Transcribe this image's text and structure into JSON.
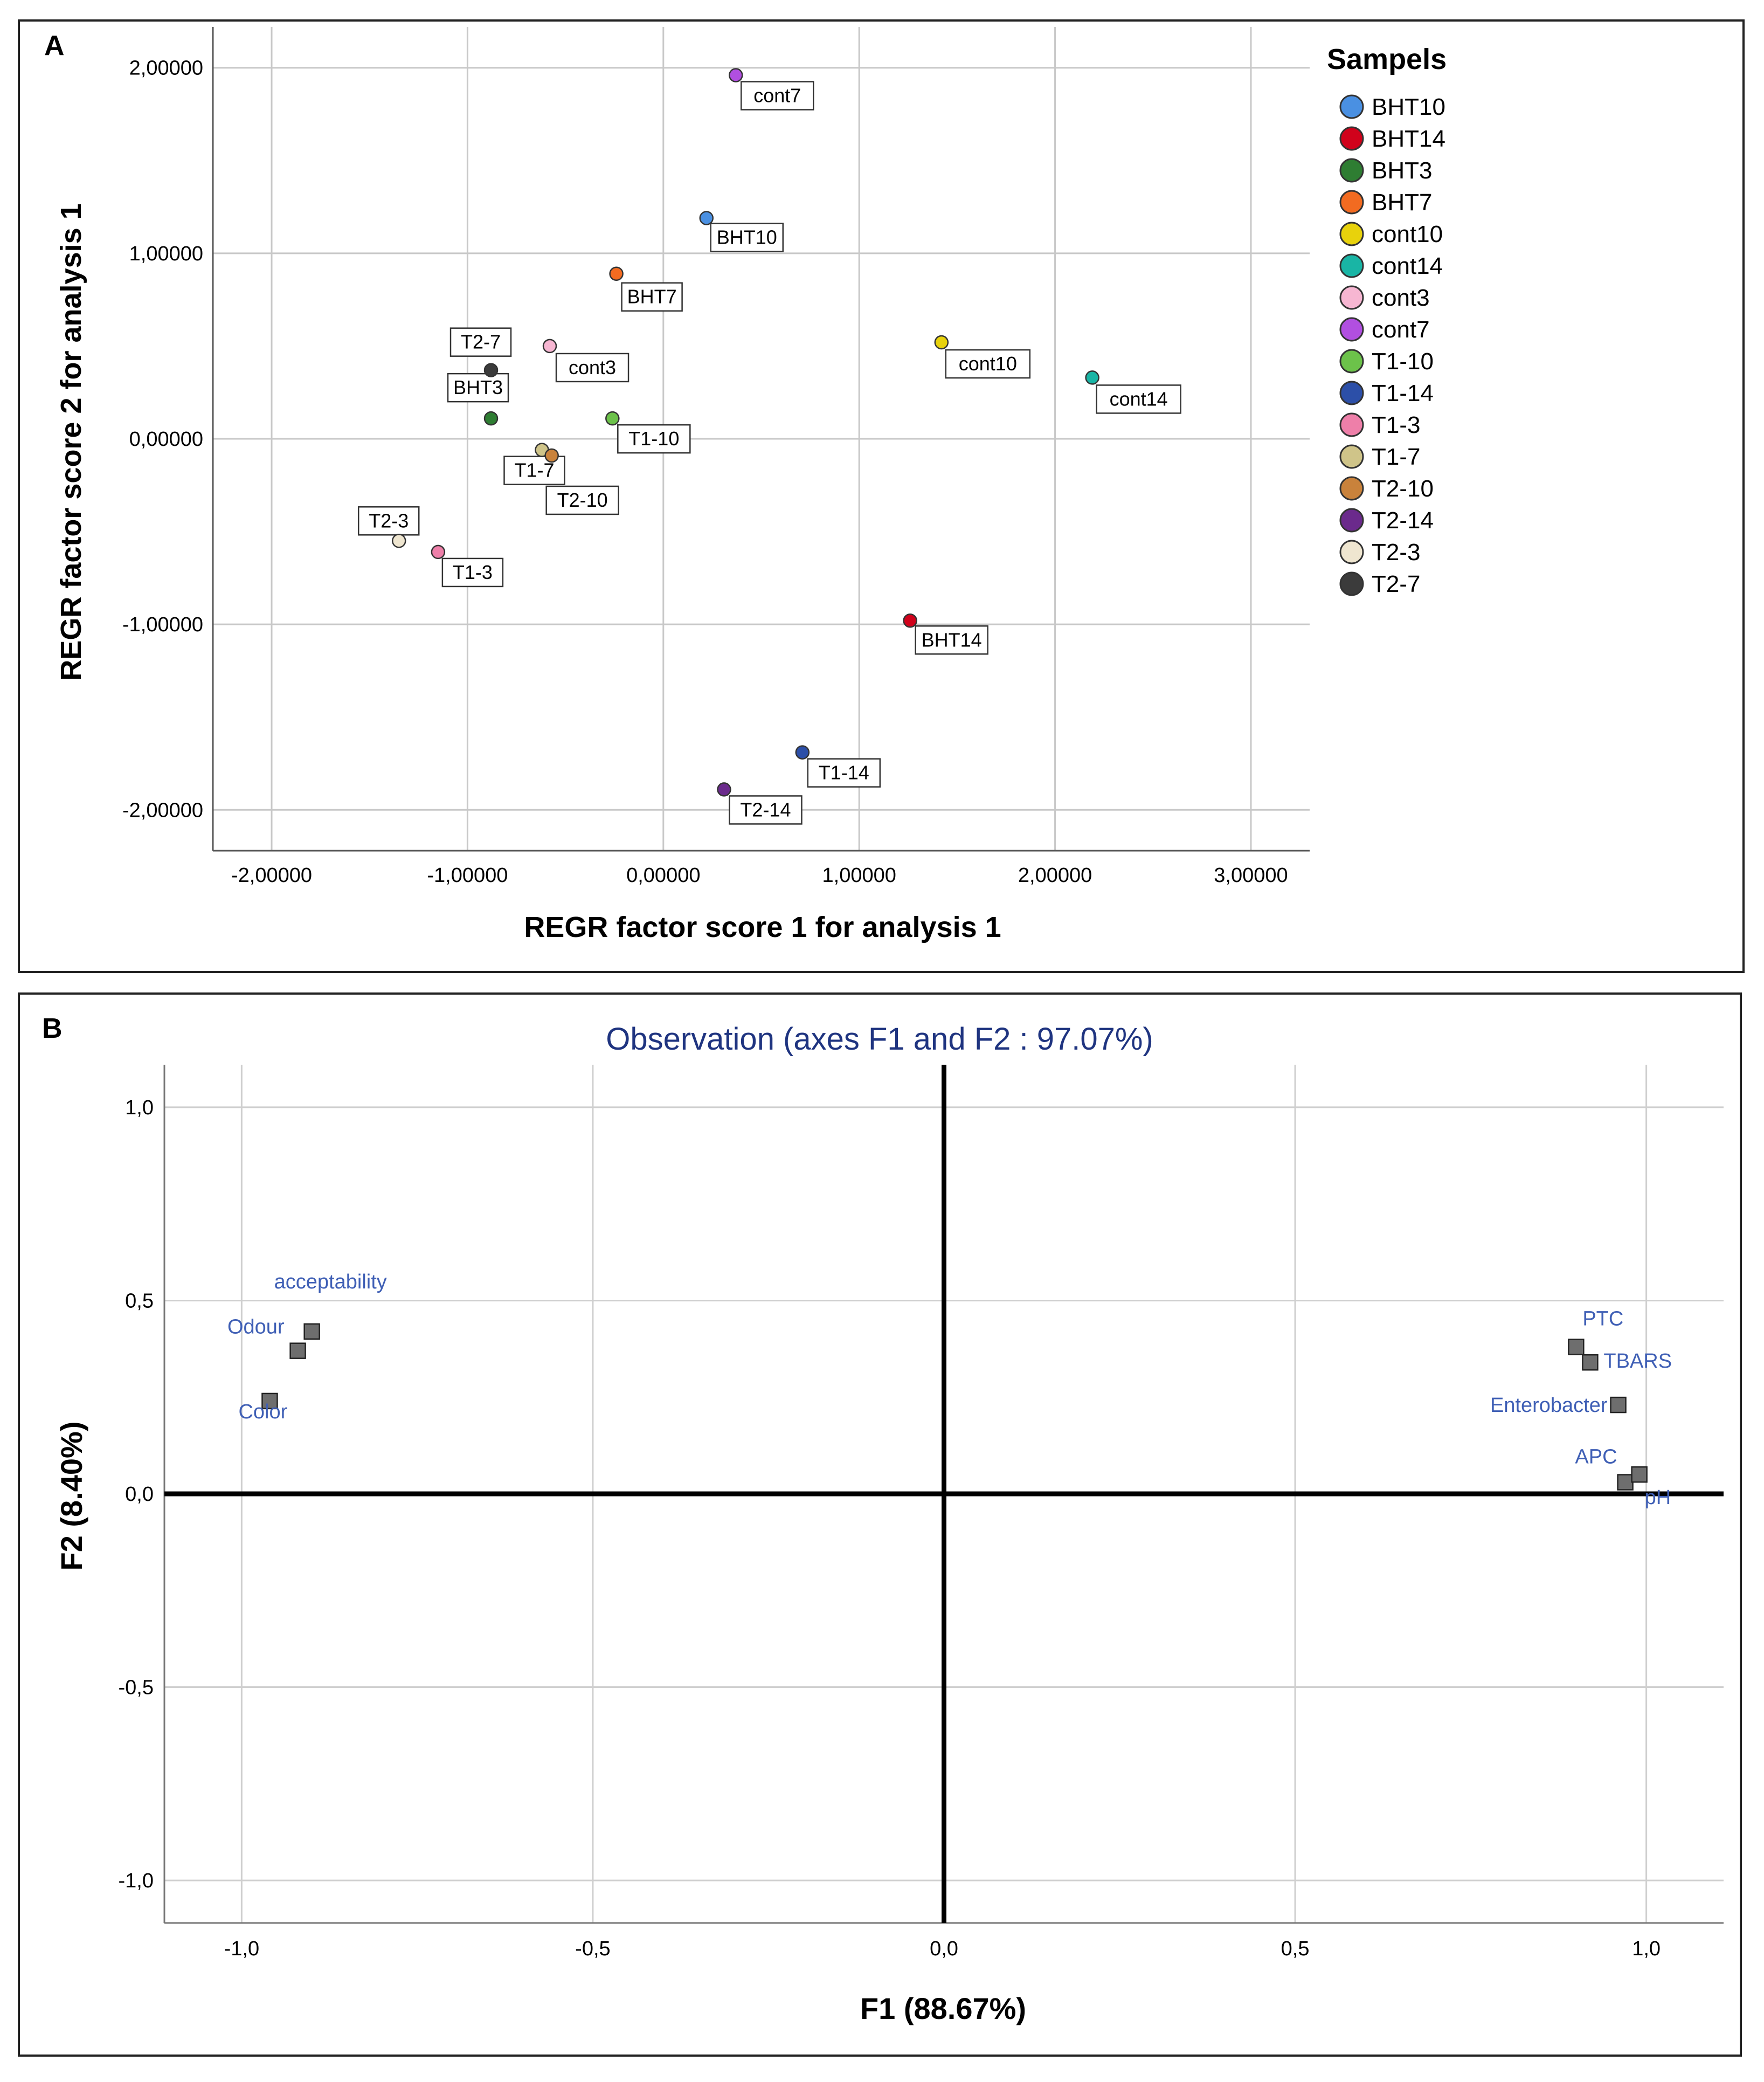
{
  "chart_data": [
    {
      "panel_label": "A",
      "type": "scatter",
      "title": "",
      "xlabel": "REGR factor score   1 for analysis 1",
      "ylabel": "REGR factor score   2 for analysis 1",
      "xlim": [
        -2.3,
        3.3
      ],
      "ylim": [
        -2.22,
        2.22
      ],
      "x_ticks": [
        -2,
        -1,
        0,
        1,
        2,
        3
      ],
      "x_tick_labels": [
        "-2,00000",
        "-1,00000",
        "0,00000",
        "1,00000",
        "2,00000",
        "3,00000"
      ],
      "y_ticks": [
        -2,
        -1,
        0,
        1,
        2
      ],
      "y_tick_labels": [
        "-2,00000",
        "-1,00000",
        "0,00000",
        "1,00000",
        "2,00000"
      ],
      "grid": true,
      "legend": {
        "title": "Sampels",
        "position": "right"
      },
      "series": [
        {
          "name": "BHT10",
          "color": "#4a90e2",
          "x": 0.22,
          "y": 1.19
        },
        {
          "name": "BHT14",
          "color": "#d0021b",
          "x": 1.26,
          "y": -0.98
        },
        {
          "name": "BHT3",
          "color": "#2e7d32",
          "x": -0.88,
          "y": 0.11
        },
        {
          "name": "BHT7",
          "color": "#f26b21",
          "x": -0.24,
          "y": 0.89
        },
        {
          "name": "cont10",
          "color": "#e8d20c",
          "x": 1.42,
          "y": 0.52
        },
        {
          "name": "cont14",
          "color": "#19b5a5",
          "x": 2.19,
          "y": 0.33
        },
        {
          "name": "cont3",
          "color": "#f7b6d2",
          "x": -0.58,
          "y": 0.5
        },
        {
          "name": "cont7",
          "color": "#b14fe0",
          "x": 0.37,
          "y": 1.96
        },
        {
          "name": "T1-10",
          "color": "#6cc24a",
          "x": -0.26,
          "y": 0.11
        },
        {
          "name": "T1-14",
          "color": "#2c4fa8",
          "x": 0.71,
          "y": -1.69
        },
        {
          "name": "T1-3",
          "color": "#ee7fa9",
          "x": -1.15,
          "y": -0.61
        },
        {
          "name": "T1-7",
          "color": "#cfc489",
          "x": -0.62,
          "y": -0.06
        },
        {
          "name": "T2-10",
          "color": "#c9823b",
          "x": -0.57,
          "y": -0.09
        },
        {
          "name": "T2-14",
          "color": "#6b2a8c",
          "x": 0.31,
          "y": -1.89
        },
        {
          "name": "T2-3",
          "color": "#efe6d0",
          "x": -1.35,
          "y": -0.55
        },
        {
          "name": "T2-7",
          "color": "#3b3b3b",
          "x": -0.88,
          "y": 0.37
        }
      ]
    },
    {
      "panel_label": "B",
      "type": "scatter",
      "title": "Observation (axes F1 and F2 : 97.07%)",
      "xlabel": "F1 (88.67%)",
      "ylabel": "F2 (8.40%)",
      "xlim": [
        -1.11,
        1.11
      ],
      "ylim": [
        -1.11,
        1.11
      ],
      "x_ticks": [
        -1,
        -0.5,
        0,
        0.5,
        1
      ],
      "x_tick_labels": [
        "-1,0",
        "-0,5",
        "0,0",
        "0,5",
        "1,0"
      ],
      "y_ticks": [
        1,
        0.5,
        0,
        -0.5,
        -1
      ],
      "y_tick_labels": [
        "1,0",
        "0,5",
        "0,0",
        "-0,5",
        "-1,0"
      ],
      "grid": true,
      "points": [
        {
          "name": "acceptability",
          "x": -0.9,
          "y": 0.42
        },
        {
          "name": "Odour",
          "x": -0.92,
          "y": 0.37
        },
        {
          "name": "Color",
          "x": -0.96,
          "y": 0.24
        },
        {
          "name": "PTC",
          "x": 0.9,
          "y": 0.38
        },
        {
          "name": "TBARS",
          "x": 0.92,
          "y": 0.34
        },
        {
          "name": "Enterobacter",
          "x": 0.96,
          "y": 0.23
        },
        {
          "name": "APC",
          "x": 0.97,
          "y": 0.03
        },
        {
          "name": "pH",
          "x": 0.99,
          "y": 0.05
        }
      ],
      "colors": {
        "label": "#3f5fb5",
        "title": "#1f3480",
        "marker": "#6e6e6e"
      }
    }
  ]
}
